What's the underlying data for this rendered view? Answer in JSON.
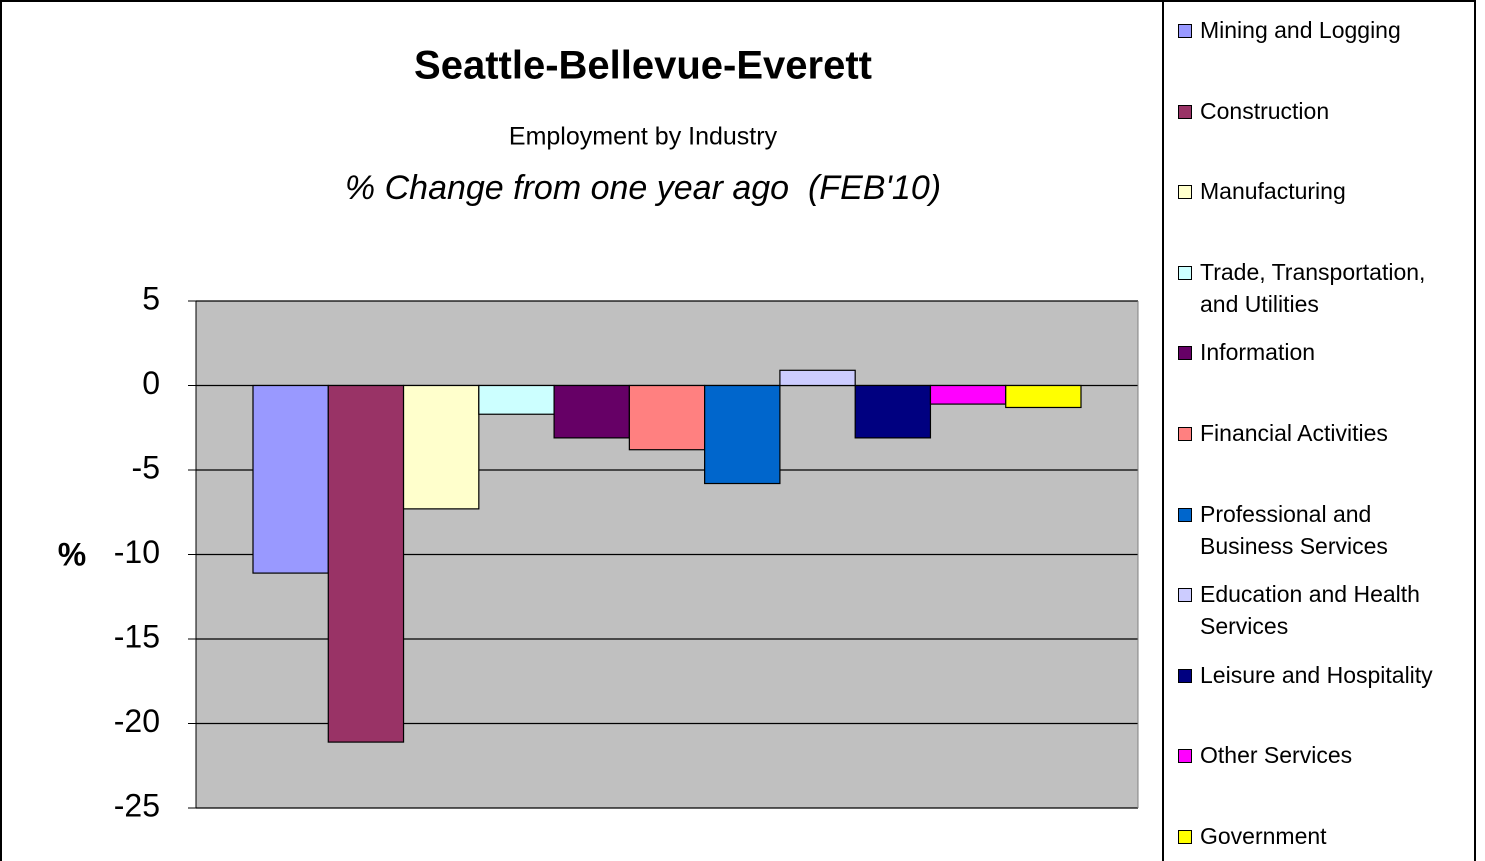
{
  "chart_data": {
    "type": "bar",
    "title": "Seattle-Bellevue-Everett",
    "subtitle": "Employment by Industry",
    "subtitle2": "% Change from one year ago  (FEB'10)",
    "y_label": "%",
    "ylim": [
      -25,
      5
    ],
    "yticks": [
      -25,
      -20,
      -15,
      -10,
      -5,
      0,
      5
    ],
    "grid": true,
    "series": [
      {
        "name": "Mining and Logging",
        "color": "#9999ff",
        "values": [
          -11.1
        ]
      },
      {
        "name": "Construction",
        "color": "#993366",
        "values": [
          -21.1
        ]
      },
      {
        "name": "Manufacturing",
        "color": "#ffffcc",
        "values": [
          -7.3
        ]
      },
      {
        "name": "Trade, Transportation, and Utilities",
        "color": "#ccffff",
        "values": [
          -1.7
        ]
      },
      {
        "name": "Information",
        "color": "#660066",
        "values": [
          -3.1
        ]
      },
      {
        "name": "Financial Activities",
        "color": "#ff8080",
        "values": [
          -3.8
        ]
      },
      {
        "name": "Professional and Business Services",
        "color": "#0066cc",
        "values": [
          -5.8
        ]
      },
      {
        "name": "Education and Health Services",
        "color": "#ccccff",
        "values": [
          0.9
        ]
      },
      {
        "name": "Leisure and Hospitality",
        "color": "#000080",
        "values": [
          -3.1
        ]
      },
      {
        "name": "Other Services",
        "color": "#ff00ff",
        "values": [
          -1.1
        ]
      },
      {
        "name": "Government",
        "color": "#ffff00",
        "values": [
          -1.3
        ]
      }
    ]
  }
}
